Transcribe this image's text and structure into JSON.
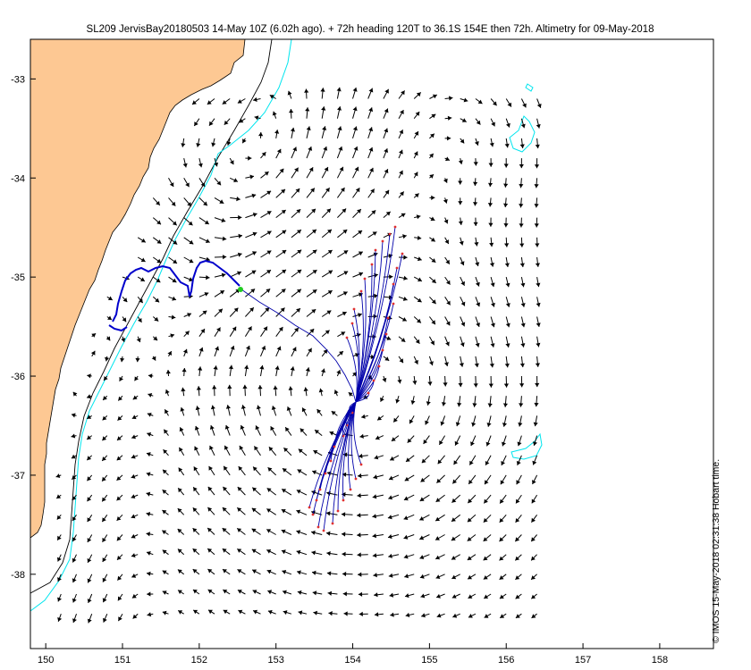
{
  "title": "SL209 JervisBay20180503 14-May 10Z (6.02h ago). + 72h heading 120T to 36.1S 154E then 72h. Altimetry for 09-May-2018",
  "credit": "© IMOS 15-May-2018 02:31:38 Hobart time.",
  "axes": {
    "lon_ticks": [
      "150",
      "151",
      "152",
      "153",
      "154",
      "155",
      "156",
      "157",
      "158"
    ],
    "lat_ticks": [
      "-33",
      "-34",
      "-35",
      "-36",
      "-37",
      "-38"
    ],
    "lon_range": [
      149.8,
      158.7
    ],
    "lat_range": [
      -38.75,
      -32.6
    ]
  },
  "colors": {
    "land": "#fdc893",
    "coast_outline": "#000000",
    "contour_1": "#000000",
    "contour_2": "#00e5ee",
    "track": "#0000cc",
    "forecast": "#0000aa",
    "glider_position": "#22cc22",
    "forecast_endpoint": "#e03030",
    "arrows": "#000000"
  },
  "layers": {
    "land_label": "",
    "glider_track": "observed glider track",
    "forecast_paths": "72h forecast drift paths",
    "current_vectors": "surface current vectors"
  }
}
